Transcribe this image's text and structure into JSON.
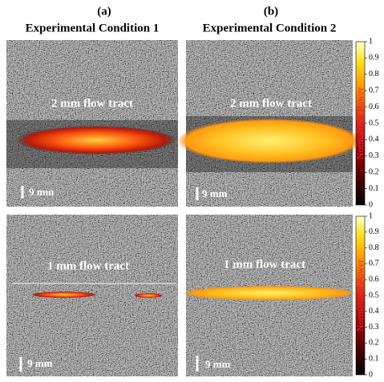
{
  "columns": [
    {
      "label": "(a)",
      "title": "Experimental Condition 1"
    },
    {
      "label": "(b)",
      "title": "Experimental Condition 2"
    }
  ],
  "panels": [
    {
      "annotation": "2 mm flow tract",
      "scale_bar": "9 mm"
    },
    {
      "annotation": "2 mm flow tract",
      "scale_bar": "9 mm"
    },
    {
      "annotation": "1 mm flow tract",
      "scale_bar": "9 mm"
    },
    {
      "annotation": "1 mm flow tract",
      "scale_bar": "9 mm"
    }
  ],
  "colorbars": [
    {
      "label": "Normalized Power",
      "lim": [
        0,
        1
      ],
      "ticks": [
        0,
        0.1,
        0.2,
        0.3,
        0.4,
        0.5,
        0.6,
        0.7,
        0.8,
        0.9,
        1
      ]
    },
    {
      "label": "Normalized Power",
      "lim": [
        0,
        1
      ],
      "ticks": [
        0,
        0.1,
        0.2,
        0.3,
        0.4,
        0.5,
        0.6,
        0.7,
        0.8,
        0.9,
        1
      ]
    }
  ]
}
